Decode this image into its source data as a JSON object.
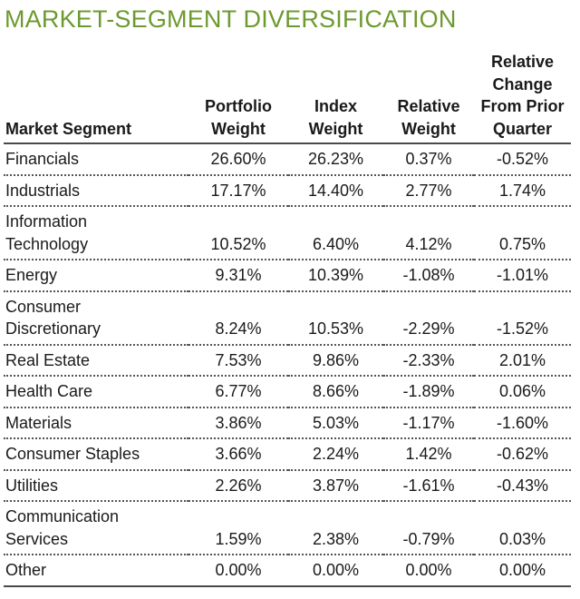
{
  "title": "MARKET-SEGMENT DIVERSIFICATION",
  "colors": {
    "title": "#6d9a2f",
    "text": "#1a1a1a",
    "rule": "#4a4a4a"
  },
  "table": {
    "headers": [
      "Market Segment",
      "Portfolio\nWeight",
      "Index\nWeight",
      "Relative\nWeight",
      "Relative\nChange\nFrom Prior\nQuarter"
    ],
    "rows": [
      {
        "segment": "Financials",
        "portfolio": "26.60%",
        "index": "26.23%",
        "relative": "0.37%",
        "change": "-0.52%"
      },
      {
        "segment": "Industrials",
        "portfolio": "17.17%",
        "index": "14.40%",
        "relative": "2.77%",
        "change": "1.74%"
      },
      {
        "segment": "Information\nTechnology",
        "portfolio": "10.52%",
        "index": "6.40%",
        "relative": "4.12%",
        "change": "0.75%"
      },
      {
        "segment": "Energy",
        "portfolio": "9.31%",
        "index": "10.39%",
        "relative": "-1.08%",
        "change": "-1.01%"
      },
      {
        "segment": "Consumer\nDiscretionary",
        "portfolio": "8.24%",
        "index": "10.53%",
        "relative": "-2.29%",
        "change": "-1.52%"
      },
      {
        "segment": "Real Estate",
        "portfolio": "7.53%",
        "index": "9.86%",
        "relative": "-2.33%",
        "change": "2.01%"
      },
      {
        "segment": "Health Care",
        "portfolio": "6.77%",
        "index": "8.66%",
        "relative": "-1.89%",
        "change": "0.06%"
      },
      {
        "segment": "Materials",
        "portfolio": "3.86%",
        "index": "5.03%",
        "relative": "-1.17%",
        "change": "-1.60%"
      },
      {
        "segment": "Consumer Staples",
        "portfolio": "3.66%",
        "index": "2.24%",
        "relative": "1.42%",
        "change": "-0.62%"
      },
      {
        "segment": "Utilities",
        "portfolio": "2.26%",
        "index": "3.87%",
        "relative": "-1.61%",
        "change": "-0.43%"
      },
      {
        "segment": "Communication\nServices",
        "portfolio": "1.59%",
        "index": "2.38%",
        "relative": "-0.79%",
        "change": "0.03%"
      },
      {
        "segment": "Other",
        "portfolio": "0.00%",
        "index": "0.00%",
        "relative": "0.00%",
        "change": "0.00%"
      }
    ]
  }
}
